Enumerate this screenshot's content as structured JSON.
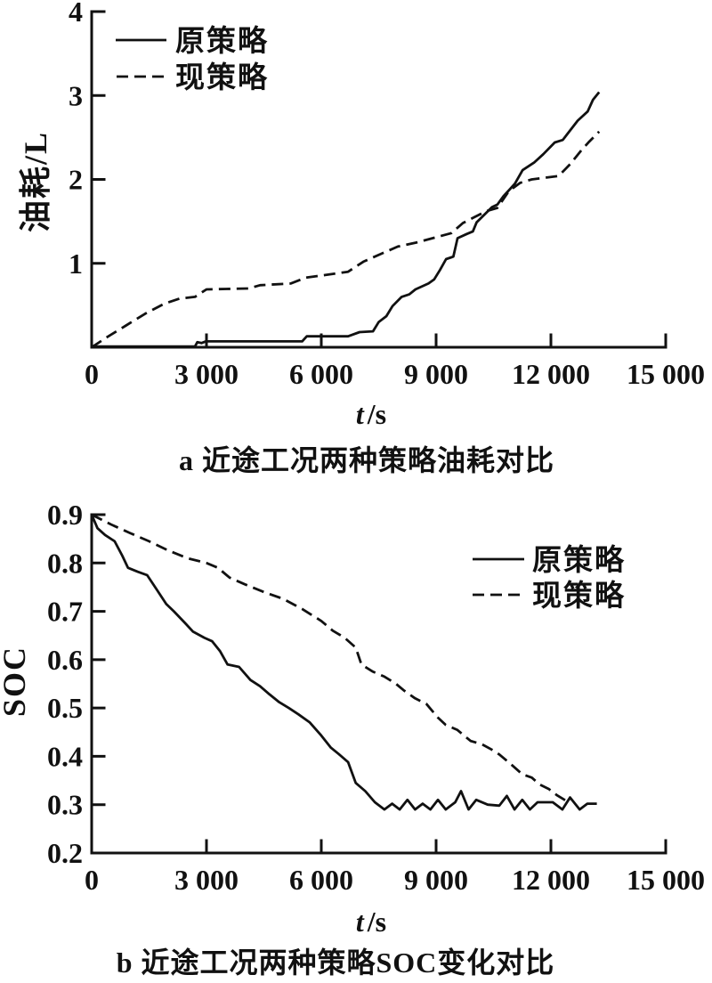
{
  "figure": {
    "background": "#ffffff",
    "foreground": "#111111"
  },
  "chart_data": [
    {
      "type": "line",
      "panel": "a",
      "caption": "a 近途工况两种策略油耗对比",
      "xlabel": "t/s",
      "xlabel_var": "t",
      "xlabel_unit": "/s",
      "ylabel": "油耗/L",
      "xlim": [
        0,
        15000
      ],
      "ylim": [
        0,
        4
      ],
      "grid": false,
      "legend_position": "top-left",
      "x_ticks": [
        {
          "value": 0,
          "label": "0"
        },
        {
          "value": 3000,
          "label": "3 000"
        },
        {
          "value": 6000,
          "label": "6 000"
        },
        {
          "value": 9000,
          "label": "9 000"
        },
        {
          "value": 12000,
          "label": "12 000"
        },
        {
          "value": 15000,
          "label": "15 000"
        }
      ],
      "y_ticks": [
        {
          "value": 1,
          "label": "1"
        },
        {
          "value": 2,
          "label": "2"
        },
        {
          "value": 3,
          "label": "3"
        },
        {
          "value": 4,
          "label": "4"
        }
      ],
      "series": [
        {
          "name": "原策略",
          "line_style": "solid",
          "points": [
            [
              0,
              0.01
            ],
            [
              2700,
              0.01
            ],
            [
              2760,
              0.06
            ],
            [
              2870,
              0.05
            ],
            [
              2980,
              0.07
            ],
            [
              5500,
              0.07
            ],
            [
              5620,
              0.13
            ],
            [
              6700,
              0.13
            ],
            [
              7000,
              0.18
            ],
            [
              7350,
              0.19
            ],
            [
              7500,
              0.3
            ],
            [
              7700,
              0.37
            ],
            [
              7860,
              0.49
            ],
            [
              8100,
              0.6
            ],
            [
              8300,
              0.63
            ],
            [
              8460,
              0.69
            ],
            [
              8800,
              0.76
            ],
            [
              8950,
              0.81
            ],
            [
              9100,
              0.92
            ],
            [
              9260,
              1.05
            ],
            [
              9450,
              1.08
            ],
            [
              9560,
              1.3
            ],
            [
              9800,
              1.35
            ],
            [
              9960,
              1.38
            ],
            [
              10060,
              1.49
            ],
            [
              10260,
              1.58
            ],
            [
              10460,
              1.67
            ],
            [
              10600,
              1.7
            ],
            [
              10760,
              1.8
            ],
            [
              10900,
              1.87
            ],
            [
              11060,
              1.95
            ],
            [
              11260,
              2.11
            ],
            [
              11560,
              2.2
            ],
            [
              11800,
              2.3
            ],
            [
              12100,
              2.44
            ],
            [
              12310,
              2.47
            ],
            [
              12700,
              2.7
            ],
            [
              12960,
              2.81
            ],
            [
              13100,
              2.95
            ],
            [
              13260,
              3.04
            ]
          ]
        },
        {
          "name": "现策略",
          "line_style": "dashed",
          "points": [
            [
              0,
              0.0
            ],
            [
              400,
              0.12
            ],
            [
              900,
              0.26
            ],
            [
              1400,
              0.4
            ],
            [
              1900,
              0.52
            ],
            [
              2300,
              0.58
            ],
            [
              2700,
              0.6
            ],
            [
              3000,
              0.69
            ],
            [
              4100,
              0.7
            ],
            [
              4400,
              0.74
            ],
            [
              5200,
              0.76
            ],
            [
              5600,
              0.83
            ],
            [
              6100,
              0.86
            ],
            [
              6700,
              0.9
            ],
            [
              7100,
              1.02
            ],
            [
              7600,
              1.12
            ],
            [
              8000,
              1.2
            ],
            [
              8500,
              1.25
            ],
            [
              9000,
              1.31
            ],
            [
              9400,
              1.36
            ],
            [
              9700,
              1.48
            ],
            [
              10000,
              1.55
            ],
            [
              10300,
              1.62
            ],
            [
              10600,
              1.66
            ],
            [
              10900,
              1.86
            ],
            [
              11200,
              1.96
            ],
            [
              11500,
              2.0
            ],
            [
              12200,
              2.04
            ],
            [
              12500,
              2.18
            ],
            [
              12800,
              2.35
            ],
            [
              13000,
              2.45
            ],
            [
              13260,
              2.57
            ]
          ]
        }
      ]
    },
    {
      "type": "line",
      "panel": "b",
      "caption": "b 近途工况两种策略SOC变化对比",
      "xlabel": "t/s",
      "xlabel_var": "t",
      "xlabel_unit": "/s",
      "ylabel": "SOC",
      "xlim": [
        0,
        15000
      ],
      "ylim": [
        0.2,
        0.9
      ],
      "grid": false,
      "legend_position": "top-right",
      "x_ticks": [
        {
          "value": 0,
          "label": "0"
        },
        {
          "value": 3000,
          "label": "3 000"
        },
        {
          "value": 6000,
          "label": "6 000"
        },
        {
          "value": 9000,
          "label": "9 000"
        },
        {
          "value": 12000,
          "label": "12 000"
        },
        {
          "value": 15000,
          "label": "15 000"
        }
      ],
      "y_ticks": [
        {
          "value": 0.2,
          "label": "0.2"
        },
        {
          "value": 0.3,
          "label": "0.3"
        },
        {
          "value": 0.4,
          "label": "0.4"
        },
        {
          "value": 0.5,
          "label": "0.5"
        },
        {
          "value": 0.6,
          "label": "0.6"
        },
        {
          "value": 0.7,
          "label": "0.7"
        },
        {
          "value": 0.8,
          "label": "0.8"
        },
        {
          "value": 0.9,
          "label": "0.9"
        }
      ],
      "series": [
        {
          "name": "原策略",
          "line_style": "solid",
          "points": [
            [
              0,
              0.9
            ],
            [
              150,
              0.872
            ],
            [
              350,
              0.858
            ],
            [
              600,
              0.845
            ],
            [
              800,
              0.815
            ],
            [
              950,
              0.79
            ],
            [
              1200,
              0.782
            ],
            [
              1450,
              0.775
            ],
            [
              1700,
              0.745
            ],
            [
              1950,
              0.715
            ],
            [
              2150,
              0.7
            ],
            [
              2450,
              0.675
            ],
            [
              2650,
              0.658
            ],
            [
              2950,
              0.645
            ],
            [
              3150,
              0.638
            ],
            [
              3350,
              0.618
            ],
            [
              3550,
              0.59
            ],
            [
              3850,
              0.585
            ],
            [
              4150,
              0.558
            ],
            [
              4400,
              0.545
            ],
            [
              4650,
              0.528
            ],
            [
              4900,
              0.512
            ],
            [
              5150,
              0.5
            ],
            [
              5400,
              0.487
            ],
            [
              5700,
              0.47
            ],
            [
              6000,
              0.443
            ],
            [
              6250,
              0.418
            ],
            [
              6450,
              0.405
            ],
            [
              6700,
              0.388
            ],
            [
              6900,
              0.345
            ],
            [
              7150,
              0.328
            ],
            [
              7400,
              0.305
            ],
            [
              7650,
              0.29
            ],
            [
              7850,
              0.302
            ],
            [
              8050,
              0.29
            ],
            [
              8250,
              0.31
            ],
            [
              8450,
              0.29
            ],
            [
              8650,
              0.302
            ],
            [
              8850,
              0.29
            ],
            [
              9050,
              0.31
            ],
            [
              9250,
              0.29
            ],
            [
              9500,
              0.305
            ],
            [
              9650,
              0.328
            ],
            [
              9850,
              0.29
            ],
            [
              10050,
              0.31
            ],
            [
              10350,
              0.3
            ],
            [
              10650,
              0.298
            ],
            [
              10850,
              0.318
            ],
            [
              11050,
              0.29
            ],
            [
              11250,
              0.31
            ],
            [
              11450,
              0.29
            ],
            [
              11650,
              0.305
            ],
            [
              12050,
              0.305
            ],
            [
              12300,
              0.29
            ],
            [
              12500,
              0.315
            ],
            [
              12750,
              0.29
            ],
            [
              12950,
              0.302
            ],
            [
              13200,
              0.302
            ]
          ]
        },
        {
          "name": "现策略",
          "line_style": "dashed",
          "points": [
            [
              0,
              0.9
            ],
            [
              500,
              0.88
            ],
            [
              1000,
              0.862
            ],
            [
              1500,
              0.845
            ],
            [
              2000,
              0.826
            ],
            [
              2500,
              0.81
            ],
            [
              3000,
              0.8
            ],
            [
              3300,
              0.79
            ],
            [
              3600,
              0.77
            ],
            [
              4000,
              0.756
            ],
            [
              4500,
              0.74
            ],
            [
              5000,
              0.726
            ],
            [
              5500,
              0.705
            ],
            [
              6000,
              0.68
            ],
            [
              6300,
              0.66
            ],
            [
              6600,
              0.646
            ],
            [
              6900,
              0.625
            ],
            [
              7050,
              0.59
            ],
            [
              7350,
              0.575
            ],
            [
              7650,
              0.565
            ],
            [
              7950,
              0.55
            ],
            [
              8150,
              0.537
            ],
            [
              8450,
              0.52
            ],
            [
              8750,
              0.508
            ],
            [
              9050,
              0.48
            ],
            [
              9250,
              0.465
            ],
            [
              9550,
              0.455
            ],
            [
              9900,
              0.432
            ],
            [
              10200,
              0.425
            ],
            [
              10450,
              0.414
            ],
            [
              10650,
              0.404
            ],
            [
              10950,
              0.384
            ],
            [
              11250,
              0.363
            ],
            [
              11500,
              0.356
            ],
            [
              11700,
              0.342
            ],
            [
              11950,
              0.332
            ],
            [
              12150,
              0.32
            ],
            [
              12400,
              0.308
            ]
          ]
        }
      ]
    }
  ]
}
